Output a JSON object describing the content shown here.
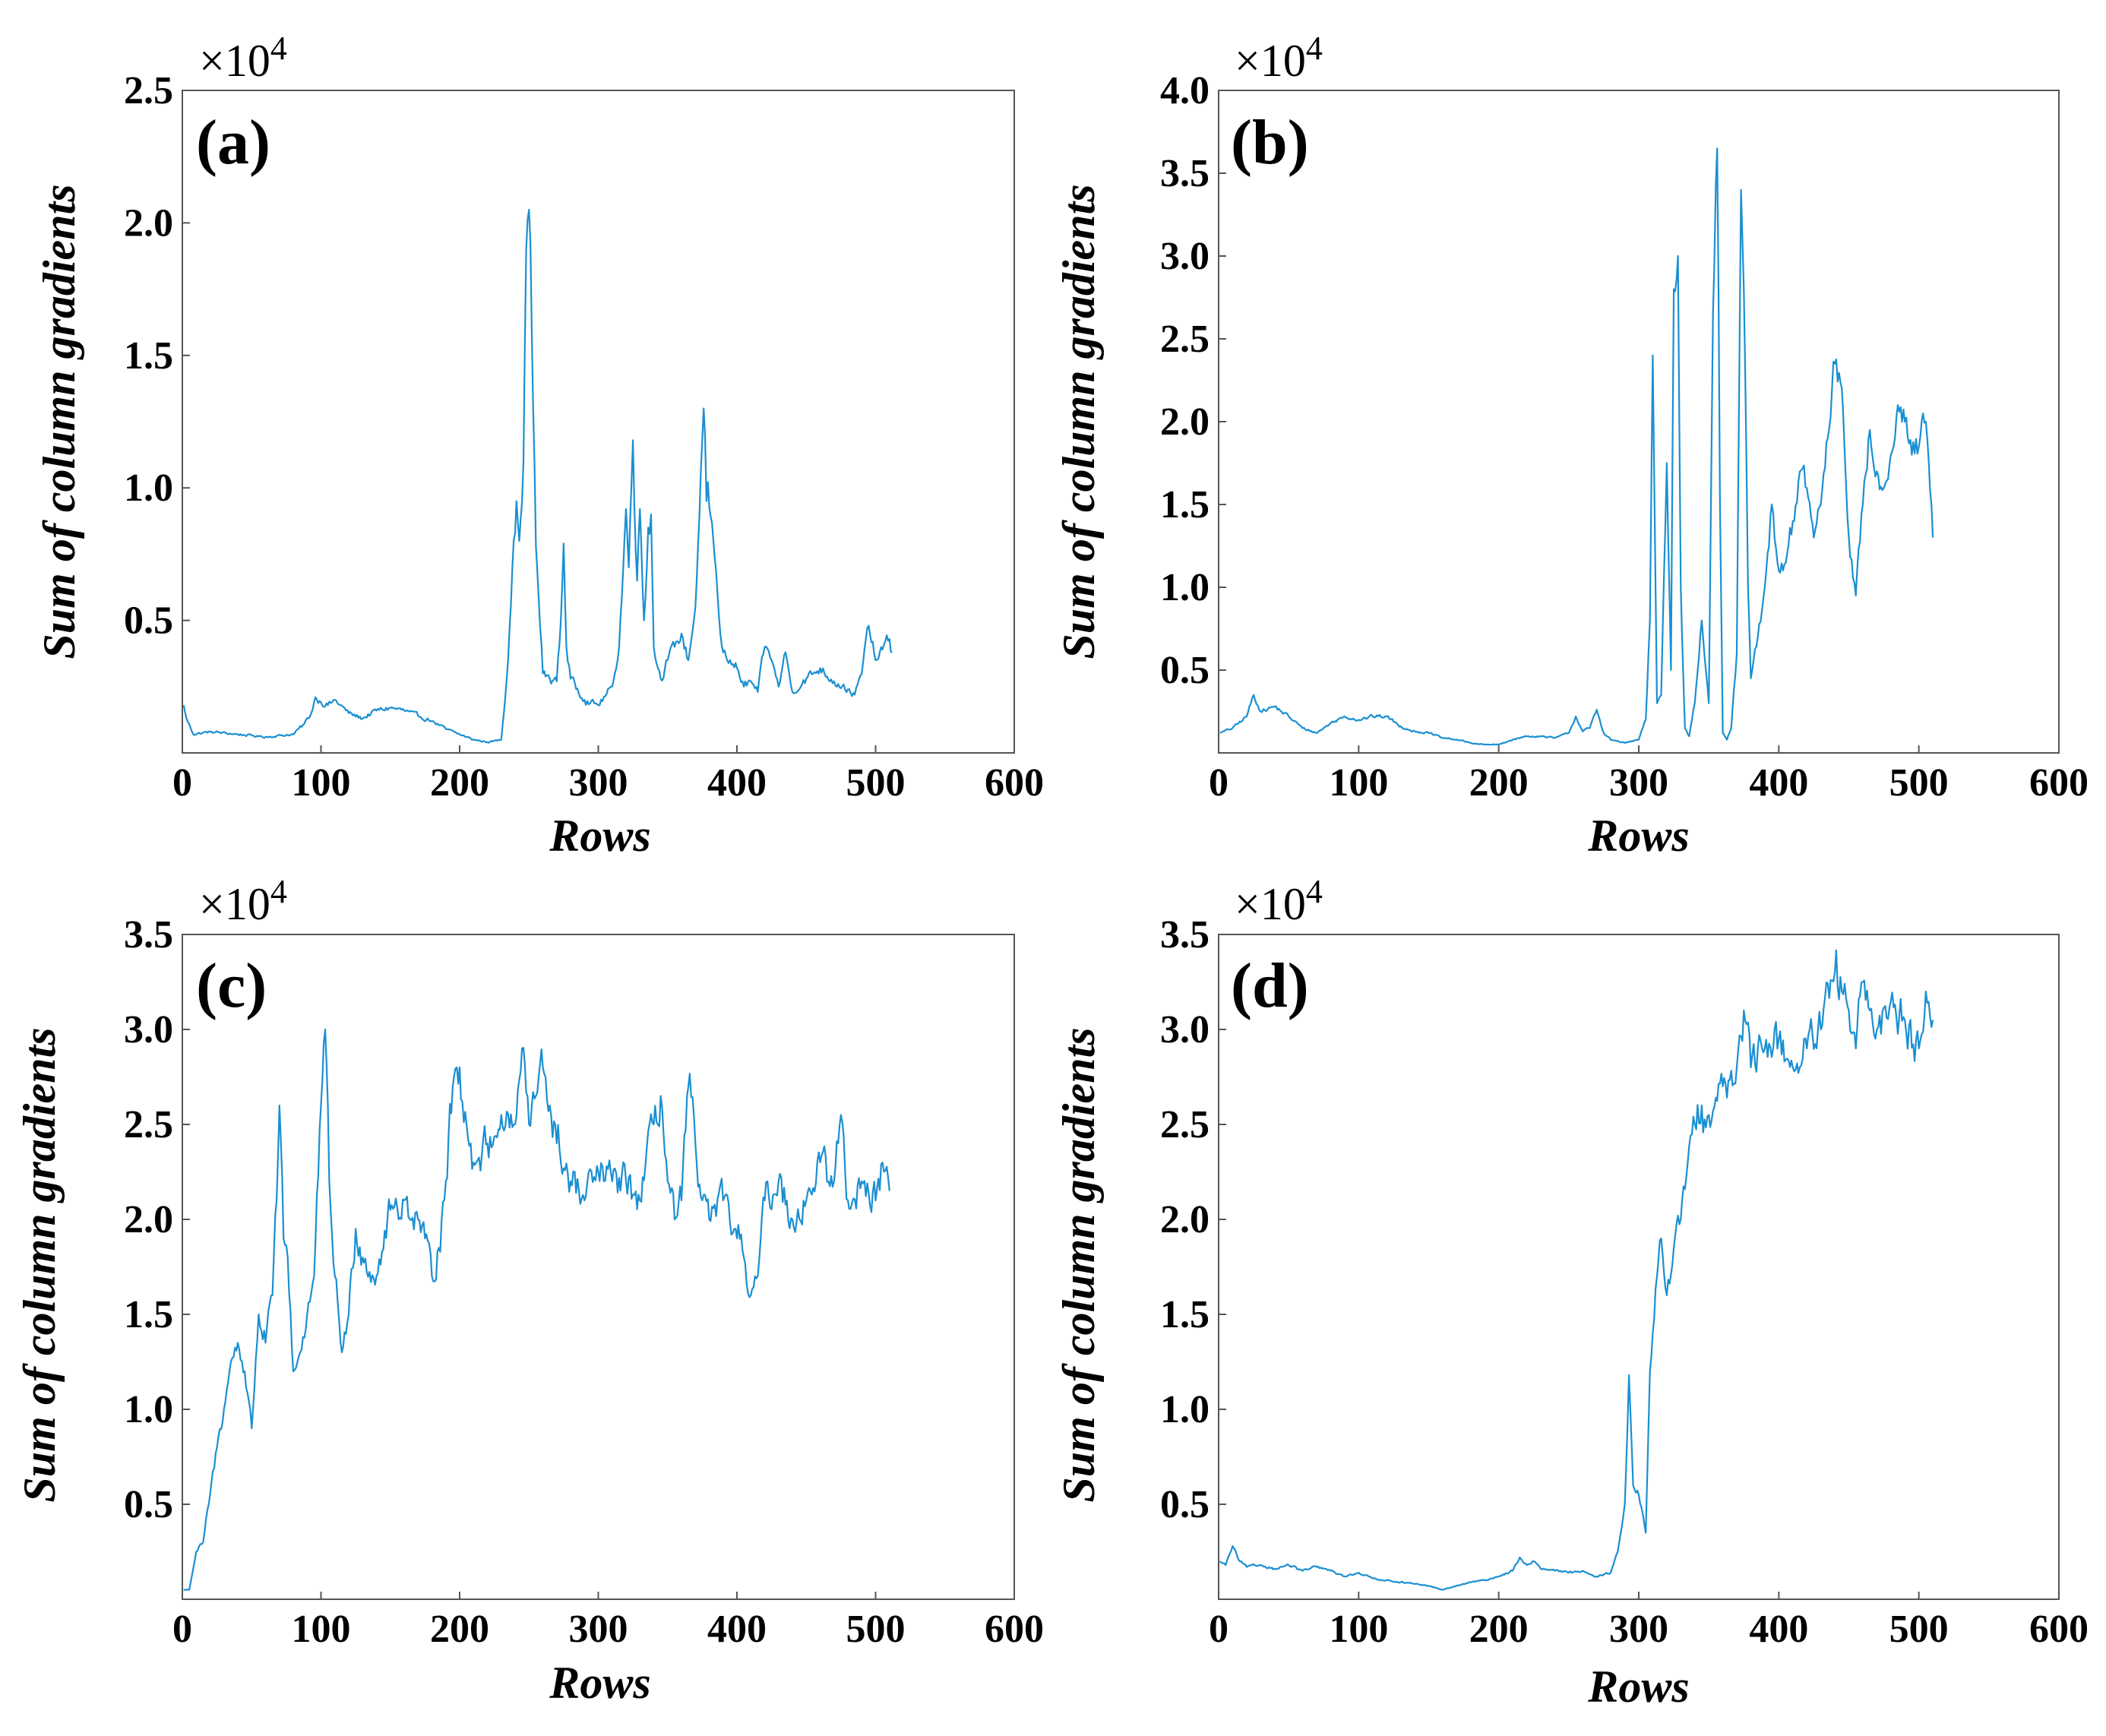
{
  "figure": {
    "colors": {
      "series": "#1b8fd1",
      "axis": "#555555",
      "text": "#000000"
    }
  },
  "chart_data": [
    {
      "type": "line",
      "panel_label": "(a)",
      "xlabel": "Rows",
      "ylabel": "Sum of column gradients",
      "multiplier": "×10",
      "multiplier_exp": "4",
      "xlim": [
        0,
        600
      ],
      "ylim": [
        0,
        25000
      ],
      "xticks": [
        0,
        100,
        200,
        300,
        400,
        500,
        600
      ],
      "xtick_labels": [
        "0",
        "100",
        "200",
        "300",
        "400",
        "500",
        "600"
      ],
      "yticks": [
        5000,
        10000,
        15000,
        20000,
        25000
      ],
      "ytick_labels": [
        "0.5",
        "1.0",
        "1.5",
        "2.0",
        "2.5"
      ],
      "series_keypoints": {
        "x": [
          1,
          3,
          8,
          20,
          40,
          60,
          80,
          88,
          93,
          96,
          100,
          105,
          110,
          120,
          130,
          140,
          150,
          160,
          170,
          180,
          190,
          200,
          210,
          220,
          230,
          234,
          238,
          241,
          243,
          246,
          248,
          250,
          252,
          255,
          260,
          265,
          270,
          273,
          275,
          277,
          280,
          290,
          300,
          310,
          315,
          320,
          322,
          325,
          328,
          330,
          333,
          336,
          338,
          340,
          345,
          350,
          355,
          360,
          365,
          370,
          373,
          376,
          378,
          380,
          383,
          386,
          388,
          390,
          395,
          400,
          405,
          410,
          415,
          420,
          425,
          430,
          435,
          440,
          450,
          460,
          470,
          480,
          485,
          490,
          495,
          500,
          505,
          510,
          512
        ],
        "y": [
          1800,
          1300,
          700,
          800,
          700,
          600,
          700,
          1100,
          1500,
          2100,
          1900,
          1800,
          2000,
          1500,
          1300,
          1600,
          1700,
          1600,
          1400,
          1200,
          900,
          700,
          500,
          400,
          500,
          2800,
          7000,
          9500,
          8000,
          11000,
          19000,
          20500,
          16000,
          7800,
          3000,
          2800,
          2700,
          5000,
          7900,
          4000,
          2800,
          2000,
          1800,
          2500,
          4000,
          9200,
          7000,
          11800,
          6500,
          9200,
          5000,
          8500,
          9000,
          4000,
          2800,
          3500,
          4000,
          4500,
          3500,
          5500,
          9000,
          13000,
          9500,
          9300,
          8000,
          6000,
          4500,
          3800,
          3500,
          3200,
          2500,
          2700,
          2300,
          4000,
          3500,
          2500,
          3800,
          2300,
          2800,
          3200,
          2700,
          2400,
          2200,
          3000,
          4800,
          3500,
          3900,
          4300,
          3800
        ]
      },
      "noise_amplitude": 0.1
    },
    {
      "type": "line",
      "panel_label": "(b)",
      "xlabel": "Rows",
      "ylabel": "Sum of column gradients",
      "multiplier": "×10",
      "multiplier_exp": "4",
      "xlim": [
        0,
        600
      ],
      "ylim": [
        0,
        40000
      ],
      "xticks": [
        0,
        100,
        200,
        300,
        400,
        500,
        600
      ],
      "xtick_labels": [
        "0",
        "100",
        "200",
        "300",
        "400",
        "500",
        "600"
      ],
      "yticks": [
        5000,
        10000,
        15000,
        20000,
        25000,
        30000,
        35000,
        40000
      ],
      "ytick_labels": [
        "0.5",
        "1.0",
        "1.5",
        "2.0",
        "2.5",
        "3.0",
        "3.5",
        "4.0"
      ],
      "series_keypoints": {
        "x": [
          1,
          10,
          20,
          25,
          30,
          40,
          50,
          60,
          70,
          80,
          90,
          100,
          110,
          120,
          130,
          140,
          150,
          160,
          170,
          180,
          190,
          200,
          210,
          220,
          230,
          240,
          250,
          255,
          260,
          265,
          270,
          275,
          280,
          290,
          300,
          305,
          308,
          310,
          313,
          316,
          320,
          323,
          325,
          328,
          330,
          333,
          336,
          340,
          345,
          350,
          353,
          356,
          358,
          360,
          363,
          366,
          370,
          373,
          376,
          378,
          380,
          385,
          390,
          395,
          400,
          405,
          410,
          415,
          420,
          425,
          430,
          435,
          440,
          445,
          450,
          455,
          460,
          465,
          470,
          475,
          480,
          485,
          490,
          495,
          500,
          505,
          510
        ],
        "y": [
          1200,
          1500,
          2200,
          3500,
          2500,
          2800,
          2200,
          1500,
          1200,
          1800,
          2200,
          2000,
          2200,
          2200,
          1600,
          1300,
          1200,
          900,
          800,
          600,
          500,
          500,
          800,
          1000,
          1000,
          900,
          1200,
          2200,
          1300,
          1500,
          2600,
          1200,
          800,
          600,
          800,
          2000,
          8000,
          24000,
          3000,
          3500,
          17500,
          5000,
          28000,
          30000,
          10000,
          1500,
          1000,
          3000,
          8000,
          3000,
          26500,
          36500,
          15000,
          1200,
          800,
          1500,
          6000,
          34000,
          23000,
          10000,
          4500,
          7000,
          10000,
          15000,
          11000,
          11500,
          14000,
          17000,
          16000,
          13000,
          15000,
          19000,
          23500,
          22000,
          13000,
          9500,
          15000,
          19500,
          17000,
          16000,
          18000,
          21000,
          20000,
          18000,
          18500,
          20000,
          13000
        ]
      },
      "noise_amplitude": 0.08
    },
    {
      "type": "line",
      "panel_label": "(c)",
      "xlabel": "Rows",
      "ylabel": "Sum of column gradients",
      "multiplier": "×10",
      "multiplier_exp": "4",
      "xlim": [
        0,
        600
      ],
      "ylim": [
        0,
        35000
      ],
      "xticks": [
        0,
        100,
        200,
        300,
        400,
        500,
        600
      ],
      "xtick_labels": [
        "0",
        "100",
        "200",
        "300",
        "400",
        "500",
        "600"
      ],
      "yticks": [
        5000,
        10000,
        15000,
        20000,
        25000,
        30000,
        35000
      ],
      "ytick_labels": [
        "0.5",
        "1.0",
        "1.5",
        "2.0",
        "2.5",
        "3.0",
        "3.5"
      ],
      "series_keypoints": {
        "x": [
          1,
          5,
          10,
          15,
          20,
          25,
          30,
          35,
          40,
          45,
          50,
          55,
          60,
          65,
          68,
          70,
          73,
          76,
          80,
          85,
          90,
          95,
          100,
          103,
          106,
          110,
          115,
          120,
          125,
          130,
          140,
          150,
          160,
          170,
          175,
          180,
          185,
          190,
          195,
          200,
          205,
          210,
          220,
          230,
          240,
          245,
          250,
          255,
          260,
          265,
          270,
          280,
          290,
          300,
          310,
          320,
          330,
          340,
          345,
          350,
          355,
          360,
          365,
          370,
          375,
          380,
          390,
          400,
          405,
          410,
          415,
          420,
          430,
          440,
          450,
          460,
          470,
          475,
          480,
          490,
          500,
          505,
          510
        ],
        "y": [
          500,
          500,
          2500,
          3000,
          5500,
          8000,
          10000,
          12500,
          13500,
          12000,
          9000,
          15000,
          13500,
          16000,
          21000,
          26000,
          19000,
          18000,
          12000,
          13000,
          15000,
          17000,
          26000,
          30000,
          22000,
          17000,
          13000,
          15000,
          19500,
          18000,
          17000,
          20500,
          21000,
          20000,
          19000,
          17000,
          18500,
          22000,
          27000,
          28000,
          25000,
          23000,
          24000,
          25500,
          25000,
          29000,
          25000,
          26500,
          28000,
          26000,
          24000,
          22000,
          21000,
          22500,
          22000,
          22000,
          21000,
          25000,
          26500,
          22000,
          20000,
          21000,
          27000,
          24000,
          21000,
          20000,
          21000,
          19000,
          18000,
          16000,
          17000,
          21000,
          22000,
          20000,
          21000,
          23000,
          22000,
          25500,
          21000,
          22000,
          21000,
          23000,
          21500
        ]
      },
      "noise_amplitude": 0.07
    },
    {
      "type": "line",
      "panel_label": "(d)",
      "xlabel": "Rows",
      "ylabel": "Sum of column gradients",
      "multiplier": "×10",
      "multiplier_exp": "4",
      "xlim": [
        0,
        600
      ],
      "ylim": [
        0,
        35000
      ],
      "xticks": [
        0,
        100,
        200,
        300,
        400,
        500,
        600
      ],
      "xtick_labels": [
        "0",
        "100",
        "200",
        "300",
        "400",
        "500",
        "600"
      ],
      "yticks": [
        5000,
        10000,
        15000,
        20000,
        25000,
        30000,
        35000
      ],
      "ytick_labels": [
        "0.5",
        "1.0",
        "1.5",
        "2.0",
        "2.5",
        "3.0",
        "3.5"
      ],
      "series_keypoints": {
        "x": [
          1,
          5,
          10,
          15,
          20,
          30,
          40,
          50,
          60,
          70,
          80,
          90,
          100,
          110,
          120,
          130,
          140,
          150,
          160,
          170,
          180,
          190,
          200,
          210,
          215,
          220,
          225,
          230,
          240,
          250,
          260,
          270,
          275,
          280,
          285,
          290,
          293,
          296,
          300,
          305,
          308,
          310,
          313,
          316,
          320,
          325,
          330,
          335,
          340,
          345,
          350,
          360,
          370,
          375,
          380,
          390,
          400,
          410,
          420,
          430,
          440,
          445,
          450,
          455,
          460,
          465,
          470,
          480,
          490,
          500,
          505,
          510
        ],
        "y": [
          2000,
          1800,
          2800,
          2000,
          1700,
          1800,
          1600,
          1800,
          1500,
          1700,
          1500,
          1200,
          1400,
          1100,
          1000,
          900,
          800,
          700,
          500,
          700,
          900,
          1000,
          1200,
          1500,
          2200,
          1800,
          2000,
          1600,
          1500,
          1400,
          1500,
          1200,
          1300,
          1400,
          2500,
          5000,
          11800,
          6000,
          5500,
          3500,
          12000,
          14000,
          17000,
          19000,
          16000,
          18500,
          20000,
          23000,
          25000,
          26000,
          25500,
          27000,
          28000,
          31000,
          28000,
          29000,
          29500,
          28000,
          29000,
          30000,
          33000,
          32000,
          31000,
          29000,
          32500,
          31000,
          30000,
          31500,
          30500,
          29000,
          32000,
          30500
        ]
      },
      "noise_amplitude": 0.06
    }
  ]
}
